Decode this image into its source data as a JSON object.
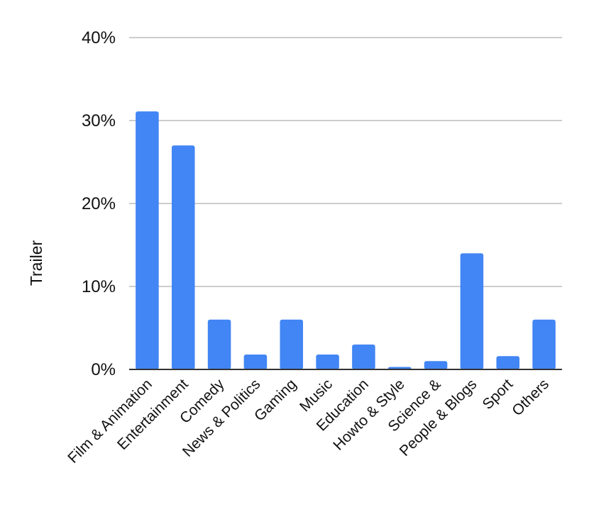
{
  "chart_data": {
    "type": "bar",
    "categories": [
      "Film & Animation",
      "Entertainment",
      "Comedy",
      "News & Politics",
      "Gaming",
      "Music",
      "Education",
      "Howto & Style",
      "Science &",
      "People & Blogs",
      "Sport",
      "Others"
    ],
    "values": [
      31.1,
      27.0,
      6.0,
      1.8,
      6.0,
      1.8,
      3.0,
      0.3,
      1.0,
      14.0,
      1.6,
      6.0
    ],
    "ylabel": "Trailer",
    "xlabel": "",
    "ylim": [
      0,
      40
    ],
    "yticks": [
      0,
      10,
      20,
      30,
      40
    ],
    "ytick_labels": [
      "0%",
      "10%",
      "20%",
      "30%",
      "40%"
    ],
    "grid": true,
    "colors": {
      "bar": "#4285f4",
      "grid": "#cccccc",
      "baseline": "#333333"
    }
  }
}
